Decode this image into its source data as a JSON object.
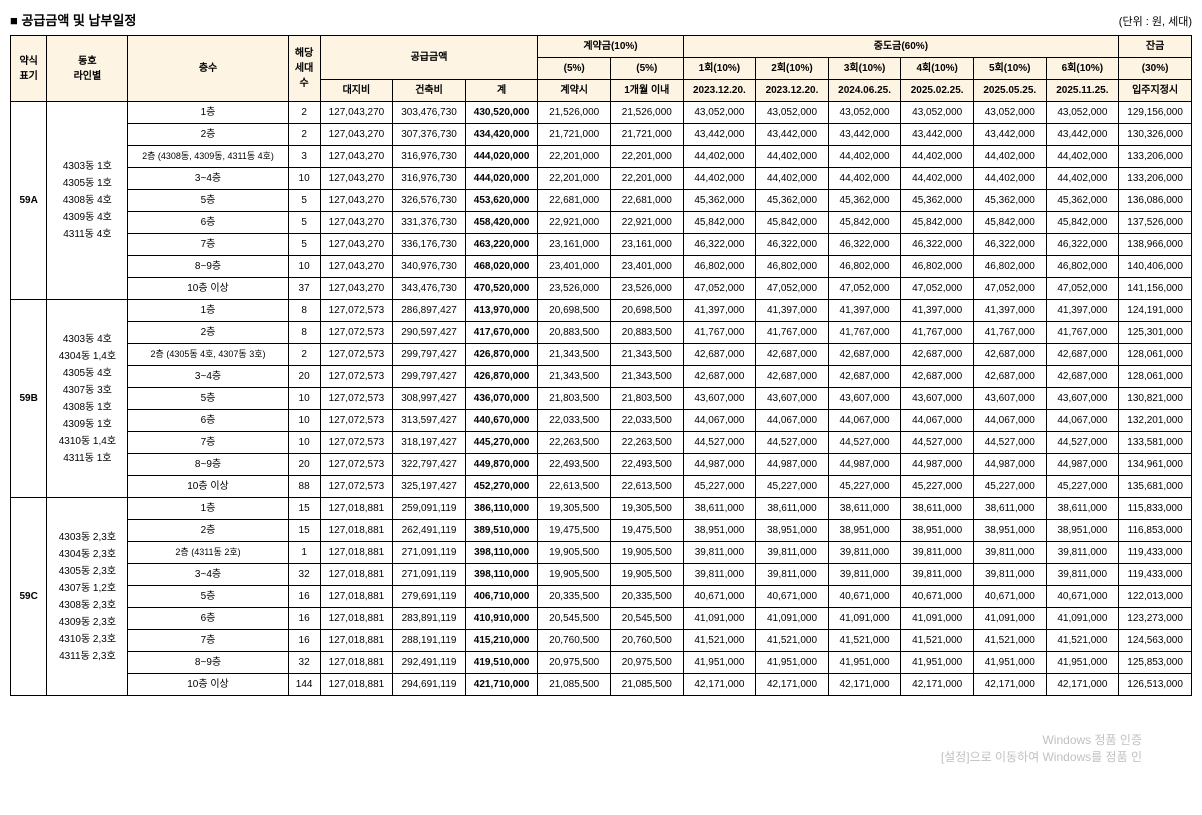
{
  "title": "■ 공급금액 및 납부일정",
  "unit": "(단위 : 원, 세대)",
  "headers": {
    "type": "약식\n표기",
    "line": "동호\n라인별",
    "floor": "층수",
    "count": "해당\n세대\n수",
    "supply": "공급금액",
    "land": "대지비",
    "build": "건축비",
    "total": "계",
    "contract": "계약금(10%)",
    "c5a": "(5%)",
    "c5b": "(5%)",
    "csign": "계약시",
    "c1month": "1개월 이내",
    "mid": "중도금(60%)",
    "m1": "1회(10%)",
    "m2": "2회(10%)",
    "m3": "3회(10%)",
    "m4": "4회(10%)",
    "m5": "5회(10%)",
    "m6": "6회(10%)",
    "d1": "2023.12.20.",
    "d2": "2023.12.20.",
    "d3": "2024.06.25.",
    "d4": "2025.02.25.",
    "d5": "2025.05.25.",
    "d6": "2025.11.25.",
    "bal": "잔금",
    "bal_pct": "(30%)",
    "bal_when": "입주지정시"
  },
  "groups": [
    {
      "type": "59A",
      "line": "4303동 1호\n4305동 1호\n4308동 4호\n4309동 4호\n4311동 4호",
      "rows": [
        {
          "floor": "1층",
          "cnt": "2",
          "land": "127,043,270",
          "build": "303,476,730",
          "total": "430,520,000",
          "c1": "21,526,000",
          "c2": "21,526,000",
          "m": "43,052,000",
          "bal": "129,156,000"
        },
        {
          "floor": "2층",
          "cnt": "2",
          "land": "127,043,270",
          "build": "307,376,730",
          "total": "434,420,000",
          "c1": "21,721,000",
          "c2": "21,721,000",
          "m": "43,442,000",
          "bal": "130,326,000"
        },
        {
          "floor": "2층 (4308동, 4309동, 4311동 4호)",
          "cnt": "3",
          "land": "127,043,270",
          "build": "316,976,730",
          "total": "444,020,000",
          "c1": "22,201,000",
          "c2": "22,201,000",
          "m": "44,402,000",
          "bal": "133,206,000",
          "small": true
        },
        {
          "floor": "3~4층",
          "cnt": "10",
          "land": "127,043,270",
          "build": "316,976,730",
          "total": "444,020,000",
          "c1": "22,201,000",
          "c2": "22,201,000",
          "m": "44,402,000",
          "bal": "133,206,000"
        },
        {
          "floor": "5층",
          "cnt": "5",
          "land": "127,043,270",
          "build": "326,576,730",
          "total": "453,620,000",
          "c1": "22,681,000",
          "c2": "22,681,000",
          "m": "45,362,000",
          "bal": "136,086,000"
        },
        {
          "floor": "6층",
          "cnt": "5",
          "land": "127,043,270",
          "build": "331,376,730",
          "total": "458,420,000",
          "c1": "22,921,000",
          "c2": "22,921,000",
          "m": "45,842,000",
          "bal": "137,526,000"
        },
        {
          "floor": "7층",
          "cnt": "5",
          "land": "127,043,270",
          "build": "336,176,730",
          "total": "463,220,000",
          "c1": "23,161,000",
          "c2": "23,161,000",
          "m": "46,322,000",
          "bal": "138,966,000"
        },
        {
          "floor": "8~9층",
          "cnt": "10",
          "land": "127,043,270",
          "build": "340,976,730",
          "total": "468,020,000",
          "c1": "23,401,000",
          "c2": "23,401,000",
          "m": "46,802,000",
          "bal": "140,406,000"
        },
        {
          "floor": "10층 이상",
          "cnt": "37",
          "land": "127,043,270",
          "build": "343,476,730",
          "total": "470,520,000",
          "c1": "23,526,000",
          "c2": "23,526,000",
          "m": "47,052,000",
          "bal": "141,156,000"
        }
      ]
    },
    {
      "type": "59B",
      "line": "4303동 4호\n4304동 1,4호\n4305동 4호\n4307동 3호\n4308동 1호\n4309동 1호\n4310동 1,4호\n4311동 1호",
      "rows": [
        {
          "floor": "1층",
          "cnt": "8",
          "land": "127,072,573",
          "build": "286,897,427",
          "total": "413,970,000",
          "c1": "20,698,500",
          "c2": "20,698,500",
          "m": "41,397,000",
          "bal": "124,191,000"
        },
        {
          "floor": "2층",
          "cnt": "8",
          "land": "127,072,573",
          "build": "290,597,427",
          "total": "417,670,000",
          "c1": "20,883,500",
          "c2": "20,883,500",
          "m": "41,767,000",
          "bal": "125,301,000"
        },
        {
          "floor": "2층 (4305동 4호, 4307동 3호)",
          "cnt": "2",
          "land": "127,072,573",
          "build": "299,797,427",
          "total": "426,870,000",
          "c1": "21,343,500",
          "c2": "21,343,500",
          "m": "42,687,000",
          "bal": "128,061,000",
          "small": true
        },
        {
          "floor": "3~4층",
          "cnt": "20",
          "land": "127,072,573",
          "build": "299,797,427",
          "total": "426,870,000",
          "c1": "21,343,500",
          "c2": "21,343,500",
          "m": "42,687,000",
          "bal": "128,061,000"
        },
        {
          "floor": "5층",
          "cnt": "10",
          "land": "127,072,573",
          "build": "308,997,427",
          "total": "436,070,000",
          "c1": "21,803,500",
          "c2": "21,803,500",
          "m": "43,607,000",
          "bal": "130,821,000"
        },
        {
          "floor": "6층",
          "cnt": "10",
          "land": "127,072,573",
          "build": "313,597,427",
          "total": "440,670,000",
          "c1": "22,033,500",
          "c2": "22,033,500",
          "m": "44,067,000",
          "bal": "132,201,000"
        },
        {
          "floor": "7층",
          "cnt": "10",
          "land": "127,072,573",
          "build": "318,197,427",
          "total": "445,270,000",
          "c1": "22,263,500",
          "c2": "22,263,500",
          "m": "44,527,000",
          "bal": "133,581,000"
        },
        {
          "floor": "8~9층",
          "cnt": "20",
          "land": "127,072,573",
          "build": "322,797,427",
          "total": "449,870,000",
          "c1": "22,493,500",
          "c2": "22,493,500",
          "m": "44,987,000",
          "bal": "134,961,000"
        },
        {
          "floor": "10층 이상",
          "cnt": "88",
          "land": "127,072,573",
          "build": "325,197,427",
          "total": "452,270,000",
          "c1": "22,613,500",
          "c2": "22,613,500",
          "m": "45,227,000",
          "bal": "135,681,000"
        }
      ]
    },
    {
      "type": "59C",
      "line": "4303동 2,3호\n4304동 2,3호\n4305동 2,3호\n4307동 1,2호\n4308동 2,3호\n4309동 2,3호\n4310동 2,3호\n4311동 2,3호",
      "rows": [
        {
          "floor": "1층",
          "cnt": "15",
          "land": "127,018,881",
          "build": "259,091,119",
          "total": "386,110,000",
          "c1": "19,305,500",
          "c2": "19,305,500",
          "m": "38,611,000",
          "bal": "115,833,000"
        },
        {
          "floor": "2층",
          "cnt": "15",
          "land": "127,018,881",
          "build": "262,491,119",
          "total": "389,510,000",
          "c1": "19,475,500",
          "c2": "19,475,500",
          "m": "38,951,000",
          "bal": "116,853,000"
        },
        {
          "floor": "2층 (4311동 2호)",
          "cnt": "1",
          "land": "127,018,881",
          "build": "271,091,119",
          "total": "398,110,000",
          "c1": "19,905,500",
          "c2": "19,905,500",
          "m": "39,811,000",
          "bal": "119,433,000",
          "small": true
        },
        {
          "floor": "3~4층",
          "cnt": "32",
          "land": "127,018,881",
          "build": "271,091,119",
          "total": "398,110,000",
          "c1": "19,905,500",
          "c2": "19,905,500",
          "m": "39,811,000",
          "bal": "119,433,000"
        },
        {
          "floor": "5층",
          "cnt": "16",
          "land": "127,018,881",
          "build": "279,691,119",
          "total": "406,710,000",
          "c1": "20,335,500",
          "c2": "20,335,500",
          "m": "40,671,000",
          "bal": "122,013,000"
        },
        {
          "floor": "6층",
          "cnt": "16",
          "land": "127,018,881",
          "build": "283,891,119",
          "total": "410,910,000",
          "c1": "20,545,500",
          "c2": "20,545,500",
          "m": "41,091,000",
          "bal": "123,273,000"
        },
        {
          "floor": "7층",
          "cnt": "16",
          "land": "127,018,881",
          "build": "288,191,119",
          "total": "415,210,000",
          "c1": "20,760,500",
          "c2": "20,760,500",
          "m": "41,521,000",
          "bal": "124,563,000"
        },
        {
          "floor": "8~9층",
          "cnt": "32",
          "land": "127,018,881",
          "build": "292,491,119",
          "total": "419,510,000",
          "c1": "20,975,500",
          "c2": "20,975,500",
          "m": "41,951,000",
          "bal": "125,853,000"
        },
        {
          "floor": "10층 이상",
          "cnt": "144",
          "land": "127,018,881",
          "build": "294,691,119",
          "total": "421,710,000",
          "c1": "21,085,500",
          "c2": "21,085,500",
          "m": "42,171,000",
          "bal": "126,513,000"
        }
      ]
    }
  ],
  "watermark1": "Windows 정품 인증",
  "watermark2": "[설정]으로 이동하여 Windows를 정품 인"
}
